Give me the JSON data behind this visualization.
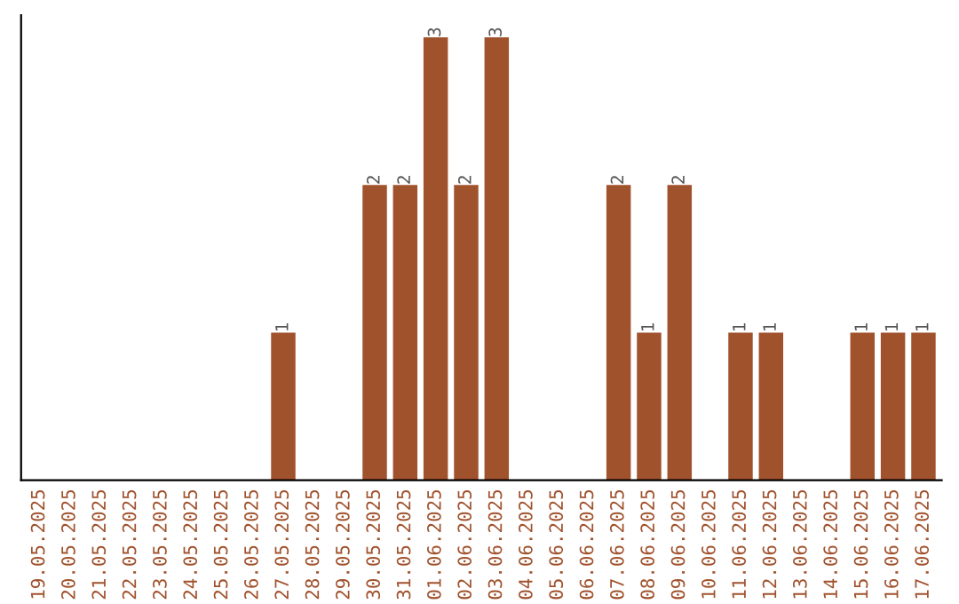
{
  "chart_data": {
    "type": "bar",
    "categories": [
      "19.05.2025",
      "20.05.2025",
      "21.05.2025",
      "22.05.2025",
      "23.05.2025",
      "24.05.2025",
      "25.05.2025",
      "26.05.2025",
      "27.05.2025",
      "28.05.2025",
      "29.05.2025",
      "30.05.2025",
      "31.05.2025",
      "01.06.2025",
      "02.06.2025",
      "03.06.2025",
      "04.06.2025",
      "05.06.2025",
      "06.06.2025",
      "07.06.2025",
      "08.06.2025",
      "09.06.2025",
      "10.06.2025",
      "11.06.2025",
      "12.06.2025",
      "13.06.2025",
      "14.06.2025",
      "15.06.2025",
      "16.06.2025",
      "17.06.2025"
    ],
    "values": [
      0,
      0,
      0,
      0,
      0,
      0,
      0,
      0,
      1,
      0,
      0,
      2,
      2,
      3,
      2,
      3,
      0,
      0,
      0,
      2,
      1,
      2,
      0,
      1,
      1,
      0,
      0,
      1,
      1,
      1
    ],
    "value_labels": [
      null,
      null,
      null,
      null,
      null,
      null,
      null,
      null,
      "1",
      null,
      null,
      "2",
      "2",
      "3",
      "2",
      "3",
      null,
      null,
      null,
      "2",
      "1",
      "2",
      null,
      "1",
      "1",
      null,
      null,
      "1",
      "1",
      "1"
    ],
    "color": "#a0522d",
    "tick_labels": "x",
    "grid": false,
    "legend": false
  }
}
